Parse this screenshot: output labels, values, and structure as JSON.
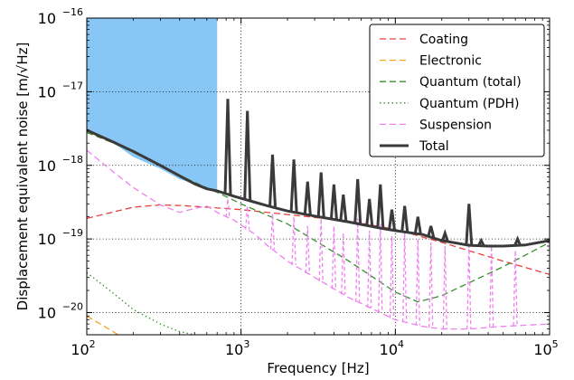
{
  "chart_data": {
    "type": "line",
    "xscale": "log",
    "yscale": "log",
    "xlim": [
      100,
      100000
    ],
    "ylim": [
      5e-21,
      1e-16
    ],
    "grid": true,
    "legend_position": "top-right",
    "xlabel_text": "Frequency",
    "xlabel_unit": "Hz",
    "ylabel_text": "Displacement equivalent noise",
    "ylabel_unit": "m/√Hz",
    "x_ticks": [
      {
        "base": "10",
        "exp": "2",
        "value": 100
      },
      {
        "base": "10",
        "exp": "3",
        "value": 1000
      },
      {
        "base": "10",
        "exp": "4",
        "value": 10000
      },
      {
        "base": "10",
        "exp": "5",
        "value": 100000
      }
    ],
    "y_ticks": [
      {
        "base": "10",
        "exp": "−16",
        "value": 1e-16
      },
      {
        "base": "10",
        "exp": "−17",
        "value": 1e-17
      },
      {
        "base": "10",
        "exp": "−18",
        "value": 1e-18
      },
      {
        "base": "10",
        "exp": "−19",
        "value": 1e-19
      },
      {
        "base": "10",
        "exp": "−20",
        "value": 1e-20
      }
    ],
    "shaded_region": {
      "x": [
        100,
        700
      ],
      "y_lower": [
        3e-18,
        2e-18,
        1.3e-18,
        9e-19,
        6.5e-19,
        5.2e-19,
        4.5e-19
      ],
      "x_lower": [
        100,
        150,
        200,
        300,
        400,
        550,
        700
      ],
      "color": "#88c6f5"
    },
    "series": [
      {
        "name": "Coating",
        "color": "#e8413c",
        "dash": "dashed",
        "x": [
          100,
          200,
          300,
          400,
          600,
          1000,
          2000,
          5000,
          10000,
          20000,
          50000,
          100000
        ],
        "y": [
          1.9e-19,
          2.7e-19,
          2.9e-19,
          2.85e-19,
          2.7e-19,
          2.5e-19,
          2.15e-19,
          1.75e-19,
          1.35e-19,
          9e-20,
          5e-20,
          3.3e-20
        ]
      },
      {
        "name": "Electronic",
        "color": "#f5a623",
        "dash": "dashed",
        "x": [
          100,
          130,
          160
        ],
        "y": [
          9e-21,
          6.5e-21,
          5e-21
        ]
      },
      {
        "name": "Quantum (total)",
        "color": "#3a8f2e",
        "dash": "dashed",
        "x": [
          100,
          150,
          200,
          300,
          450,
          700,
          1000,
          2000,
          5000,
          10000,
          14000,
          20000,
          50000,
          100000
        ],
        "y": [
          2.8e-18,
          2e-18,
          1.5e-18,
          1e-18,
          6.5e-19,
          4.3e-19,
          3e-19,
          1.6e-19,
          5e-20,
          1.9e-20,
          1.4e-20,
          1.7e-20,
          4.2e-20,
          9e-20
        ]
      },
      {
        "name": "Quantum (PDH)",
        "color": "#3a8f2e",
        "dash": "dotted",
        "x": [
          100,
          150,
          200,
          300,
          400,
          500
        ],
        "y": [
          3.5e-20,
          1.8e-20,
          1.1e-20,
          7e-21,
          5.5e-21,
          5e-21
        ]
      },
      {
        "name": "Suspension",
        "color": "#ee82ee",
        "dash": "dashed",
        "x": [
          100,
          150,
          200,
          300,
          400,
          500,
          600,
          700,
          900,
          1200,
          1500,
          2000,
          3000,
          5000,
          8000,
          10000,
          15000,
          20000,
          30000,
          50000,
          100000
        ],
        "y": [
          1.6e-18,
          8e-19,
          5e-19,
          2.9e-19,
          2.3e-19,
          2.6e-19,
          2.8e-19,
          2.3e-19,
          1.8e-19,
          1.2e-19,
          8e-20,
          5e-20,
          3e-20,
          1.6e-20,
          1e-20,
          8e-21,
          6.5e-21,
          6e-21,
          6e-21,
          6.5e-21,
          7e-21
        ],
        "peaks": [
          {
            "x": 820,
            "y": 3.5e-19
          },
          {
            "x": 1100,
            "y": 2.8e-19
          },
          {
            "x": 1600,
            "y": 2.2e-19
          },
          {
            "x": 2200,
            "y": 2e-19
          },
          {
            "x": 2700,
            "y": 1.5e-19
          },
          {
            "x": 3300,
            "y": 1.9e-19
          },
          {
            "x": 4000,
            "y": 1.5e-19
          },
          {
            "x": 4600,
            "y": 1.2e-19
          },
          {
            "x": 5700,
            "y": 1.9e-19
          },
          {
            "x": 6800,
            "y": 1.3e-19
          },
          {
            "x": 8000,
            "y": 1.6e-19
          },
          {
            "x": 9500,
            "y": 1.1e-19
          },
          {
            "x": 11500,
            "y": 1.2e-19
          },
          {
            "x": 14000,
            "y": 1e-19
          },
          {
            "x": 17000,
            "y": 9e-20
          },
          {
            "x": 21000,
            "y": 8e-20
          },
          {
            "x": 30000,
            "y": 9e-20
          },
          {
            "x": 42000,
            "y": 8e-20
          },
          {
            "x": 60000,
            "y": 7e-20
          }
        ]
      },
      {
        "name": "Total",
        "color": "#3a3a3a",
        "dash": "solid",
        "x": [
          100,
          150,
          200,
          300,
          400,
          500,
          600,
          700,
          900,
          1200,
          1500,
          2000,
          3000,
          5000,
          8000,
          10000,
          15000,
          20000,
          30000,
          40000,
          50000,
          70000,
          100000
        ],
        "y": [
          3e-18,
          2.05e-18,
          1.55e-18,
          1e-18,
          7.2e-19,
          5.6e-19,
          4.8e-19,
          4.5e-19,
          3.8e-19,
          3.2e-19,
          2.8e-19,
          2.4e-19,
          2.05e-19,
          1.7e-19,
          1.4e-19,
          1.3e-19,
          1.15e-19,
          9.5e-20,
          8.2e-20,
          8e-20,
          8e-20,
          8.3e-20,
          9.5e-20
        ],
        "peaks": [
          {
            "x": 820,
            "y": 8e-18
          },
          {
            "x": 1100,
            "y": 5.5e-18
          },
          {
            "x": 1600,
            "y": 1.4e-18
          },
          {
            "x": 2200,
            "y": 1.2e-18
          },
          {
            "x": 2700,
            "y": 6e-19
          },
          {
            "x": 3300,
            "y": 8e-19
          },
          {
            "x": 4000,
            "y": 5.5e-19
          },
          {
            "x": 4600,
            "y": 4e-19
          },
          {
            "x": 5700,
            "y": 6.5e-19
          },
          {
            "x": 6800,
            "y": 3.5e-19
          },
          {
            "x": 8000,
            "y": 5.5e-19
          },
          {
            "x": 9500,
            "y": 2.5e-19
          },
          {
            "x": 11500,
            "y": 2.8e-19
          },
          {
            "x": 14000,
            "y": 2e-19
          },
          {
            "x": 17000,
            "y": 1.5e-19
          },
          {
            "x": 21000,
            "y": 1.2e-19
          },
          {
            "x": 30000,
            "y": 3e-19
          },
          {
            "x": 36000,
            "y": 9.5e-20
          },
          {
            "x": 62000,
            "y": 1e-19
          }
        ]
      }
    ]
  }
}
